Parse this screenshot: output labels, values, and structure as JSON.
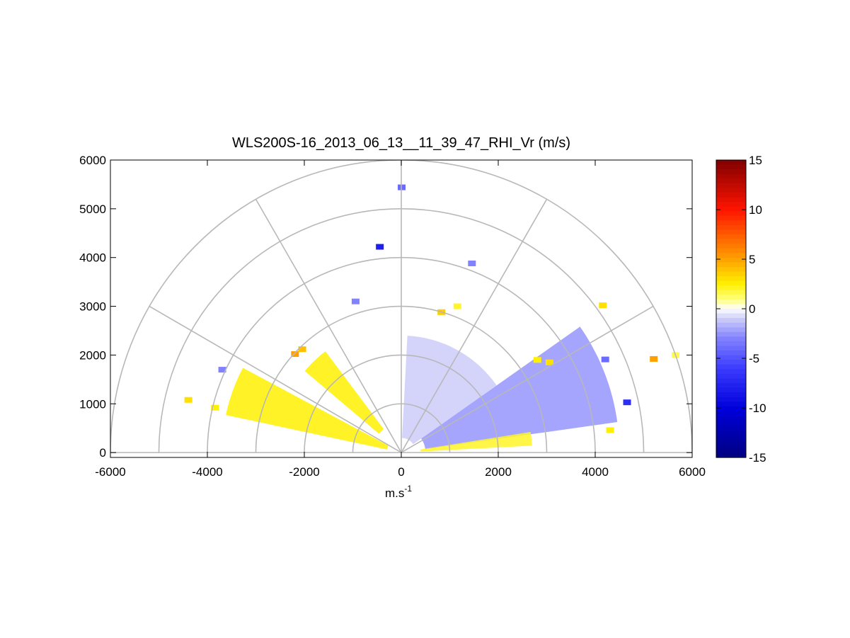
{
  "chart_data": {
    "type": "heatmap",
    "title": "WLS200S-16_2013_06_13__11_39_47_RHI_Vr (m/s)",
    "xlabel_base": "m.s",
    "xlabel_exp": "-1",
    "ylabel": "",
    "xlim": [
      -6000,
      6000
    ],
    "ylim": [
      -100,
      6000
    ],
    "xticks": [
      -6000,
      -4000,
      -2000,
      0,
      2000,
      4000,
      6000
    ],
    "xtick_labels": [
      "-6000",
      "-4000",
      "-2000",
      "0",
      "2000",
      "4000",
      "6000"
    ],
    "yticks": [
      0,
      1000,
      2000,
      3000,
      4000,
      5000,
      6000
    ],
    "ytick_labels": [
      "0",
      "1000",
      "2000",
      "3000",
      "4000",
      "5000",
      "6000"
    ],
    "polar_grid": {
      "ring_radii": [
        1000,
        2000,
        3000,
        4000,
        5000,
        6000
      ],
      "spoke_angles_deg": [
        0,
        30,
        60,
        90,
        120,
        150,
        180
      ]
    },
    "grid": true,
    "colorbar": {
      "range": [
        -15,
        15
      ],
      "ticks": [
        15,
        10,
        5,
        0,
        -5,
        -10,
        -15
      ],
      "tick_labels": [
        "15",
        "10",
        "5",
        "0",
        "-5",
        "-10",
        "-15"
      ],
      "colormap": "blue-white-red (dark blue, blue, light blue, white, yellow, orange, red, dark red)"
    },
    "regions": [
      {
        "name": "left low-angle positive sector",
        "elev_deg": [
          152,
          168
        ],
        "range_m": [
          300,
          3700
        ],
        "vr_m_s": 2.5
      },
      {
        "name": "left mid-angle positive sector",
        "elev_deg": [
          127,
          140
        ],
        "range_m": [
          600,
          2600
        ],
        "vr_m_s": 2.5
      },
      {
        "name": "right main negative region",
        "elev_deg": [
          8,
          35
        ],
        "range_m": [
          500,
          4500
        ],
        "vr_m_s": -2.5
      },
      {
        "name": "right near-range negative region",
        "elev_deg": [
          35,
          87
        ],
        "range_m": [
          300,
          2400
        ],
        "vr_m_s": -1
      },
      {
        "name": "right low-angle positive band",
        "elev_deg": [
          3,
          9
        ],
        "range_m": [
          400,
          2700
        ],
        "vr_m_s": 2
      }
    ],
    "isolated_pixels": [
      {
        "x": 0,
        "y": 5440,
        "vr_m_s": -4
      },
      {
        "x": -450,
        "y": 4220,
        "vr_m_s": -8
      },
      {
        "x": 1450,
        "y": 3880,
        "vr_m_s": -3
      },
      {
        "x": -950,
        "y": 3100,
        "vr_m_s": -3
      },
      {
        "x": 1150,
        "y": 3000,
        "vr_m_s": 2
      },
      {
        "x": 820,
        "y": 2880,
        "vr_m_s": 3.5
      },
      {
        "x": 4150,
        "y": 3020,
        "vr_m_s": 3
      },
      {
        "x": -2200,
        "y": 2020,
        "vr_m_s": 5
      },
      {
        "x": -2050,
        "y": 2120,
        "vr_m_s": 4
      },
      {
        "x": 5200,
        "y": 1920,
        "vr_m_s": 5
      },
      {
        "x": 5650,
        "y": 2000,
        "vr_m_s": 1.5
      },
      {
        "x": -4400,
        "y": 1080,
        "vr_m_s": 3
      },
      {
        "x": -3700,
        "y": 1700,
        "vr_m_s": -3
      },
      {
        "x": -3850,
        "y": 920,
        "vr_m_s": 2.5
      },
      {
        "x": 4200,
        "y": 1910,
        "vr_m_s": -4
      },
      {
        "x": 4650,
        "y": 1030,
        "vr_m_s": -7
      },
      {
        "x": 4300,
        "y": 460,
        "vr_m_s": 2.5
      },
      {
        "x": 2800,
        "y": 1900,
        "vr_m_s": 2.5
      },
      {
        "x": 3050,
        "y": 1850,
        "vr_m_s": 3
      }
    ]
  }
}
